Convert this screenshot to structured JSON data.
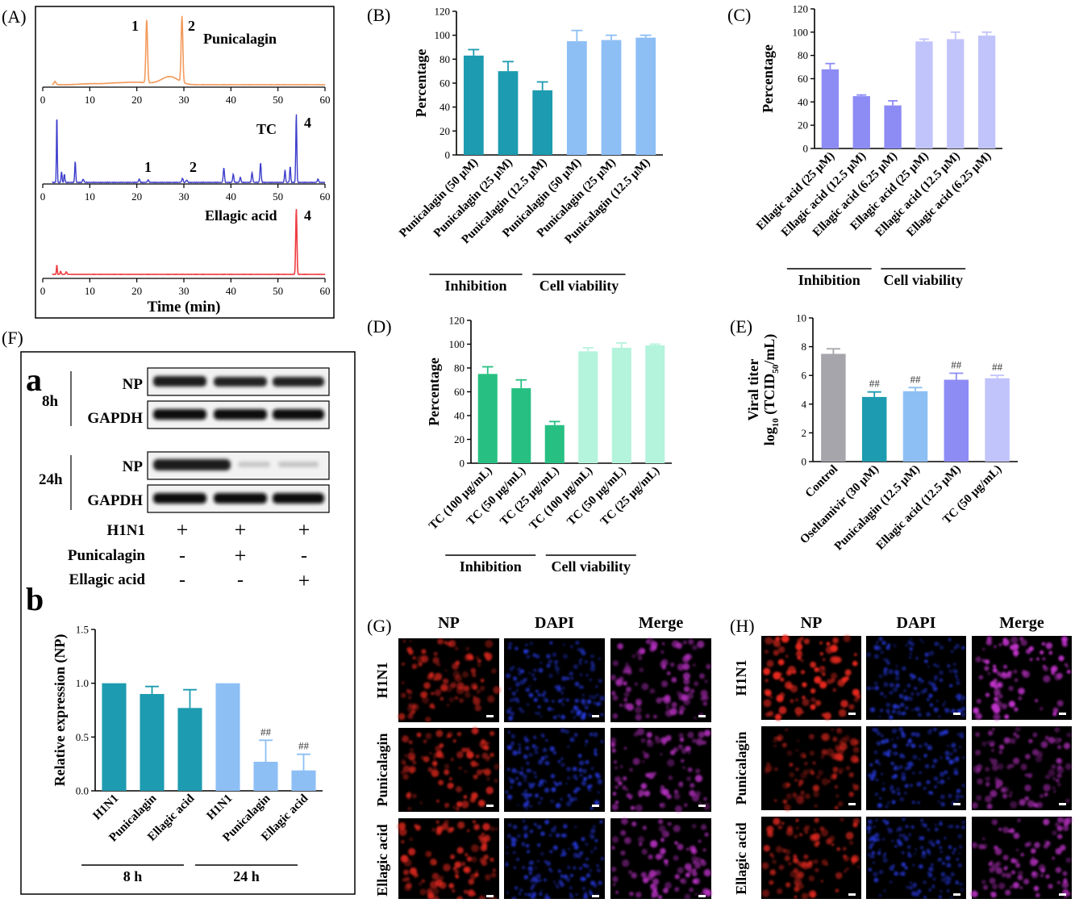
{
  "panels": {
    "A": {
      "letter": "(A)",
      "xlabel": "Time (min)",
      "ticks": [
        "0",
        "10",
        "20",
        "30",
        "40",
        "50",
        "60"
      ],
      "labels": {
        "pun_title": "Punicalagin",
        "tc_title": "TC",
        "ea_title": "Ellagic acid",
        "p1": "1",
        "p2": "2",
        "p4": "4"
      }
    },
    "B": {
      "letter": "(B)"
    },
    "C": {
      "letter": "(C)"
    },
    "D": {
      "letter": "(D)"
    },
    "E": {
      "letter": "(E)"
    },
    "F": {
      "letter": "(F)",
      "sub_a": "a",
      "sub_b": "b",
      "row_8h": "8h",
      "row_24h": "24h",
      "np": "NP",
      "gapdh": "GAPDH",
      "t_h1n1": "H1N1",
      "t_pun": "Punicalagin",
      "t_ea": "Ellagic acid",
      "signs": {
        "h1n1": [
          "+",
          "+",
          "+"
        ],
        "pun": [
          "-",
          "+",
          "-"
        ],
        "ea": [
          "-",
          "-",
          "+"
        ]
      }
    },
    "G": {
      "letter": "(G)",
      "cols": [
        "NP",
        "DAPI",
        "Merge"
      ],
      "rows": [
        "H1N1",
        "Punicalagin",
        "Ellagic acid"
      ]
    },
    "H": {
      "letter": "(H)",
      "cols": [
        "NP",
        "DAPI",
        "Merge"
      ],
      "rows": [
        "H1N1",
        "Punicalagin",
        "Ellagic acid"
      ]
    }
  },
  "colors": {
    "teal": "#1d9bb0",
    "lightblue": "#8dbff5",
    "purple": "#8d8cf5",
    "lavender": "#c1c3fb",
    "green": "#27c082",
    "mint": "#b4f3dc",
    "gray": "#a5a5ab",
    "orange": "#f39a5c",
    "blue": "#3c3ccc",
    "red": "#ee3b40"
  },
  "chart_data": [
    {
      "id": "B",
      "type": "bar",
      "ylabel": "Percentage",
      "ylim": [
        0,
        120
      ],
      "yticks": [
        0,
        20,
        40,
        60,
        80,
        100,
        120
      ],
      "categories": [
        "Punicalagin (50 μM)",
        "Punicalagin (25 μM)",
        "Punicalagin (12.5 μM)",
        "Punicalagin (50 μM)",
        "Punicalagin (25 μM)",
        "Punicalagin (12.5 μM)"
      ],
      "values": [
        83,
        70,
        54,
        95,
        96,
        98
      ],
      "errors": [
        5,
        8,
        7,
        9,
        4,
        2
      ],
      "colors": [
        "#1d9bb0",
        "#1d9bb0",
        "#1d9bb0",
        "#8dbff5",
        "#8dbff5",
        "#8dbff5"
      ],
      "groups": [
        {
          "label": "Inhibition",
          "from": 0,
          "to": 2
        },
        {
          "label": "Cell viability",
          "from": 3,
          "to": 5
        }
      ]
    },
    {
      "id": "C",
      "type": "bar",
      "ylabel": "Percentage",
      "ylim": [
        0,
        120
      ],
      "yticks": [
        0,
        20,
        40,
        60,
        80,
        100,
        120
      ],
      "categories": [
        "Ellagic acid (25 μM)",
        "Ellagic acid (12.5 μM)",
        "Ellagic acid (6.25 μM)",
        "Ellagic acid (25 μM)",
        "Ellagic acid (12.5 μM)",
        "Ellagic acid (6.25 μM)"
      ],
      "values": [
        68,
        45,
        37,
        92,
        94,
        97
      ],
      "errors": [
        5,
        1,
        4,
        2,
        6,
        3
      ],
      "colors": [
        "#8d8cf5",
        "#8d8cf5",
        "#8d8cf5",
        "#c1c3fb",
        "#c1c3fb",
        "#c1c3fb"
      ],
      "groups": [
        {
          "label": "Inhibition",
          "from": 0,
          "to": 2
        },
        {
          "label": "Cell viability",
          "from": 3,
          "to": 5
        }
      ]
    },
    {
      "id": "D",
      "type": "bar",
      "ylabel": "Percentage",
      "ylim": [
        0,
        120
      ],
      "yticks": [
        0,
        20,
        40,
        60,
        80,
        100,
        120
      ],
      "categories": [
        "TC (100 μg/mL)",
        "TC (50 μg/mL)",
        "TC (25 μg/mL)",
        "TC (100 μg/mL)",
        "TC (50 μg/mL)",
        "TC (25 μg/mL)"
      ],
      "values": [
        75,
        63,
        32,
        94,
        97,
        99
      ],
      "errors": [
        6,
        7,
        3,
        3,
        4,
        1
      ],
      "colors": [
        "#27c082",
        "#27c082",
        "#27c082",
        "#b4f3dc",
        "#b4f3dc",
        "#b4f3dc"
      ],
      "groups": [
        {
          "label": "Inhibition",
          "from": 0,
          "to": 2
        },
        {
          "label": "Cell viability",
          "from": 3,
          "to": 5
        }
      ]
    },
    {
      "id": "E",
      "type": "bar",
      "ylabel": "Viral titer",
      "ylabel2": "log10 (TCID50/mL)",
      "ylim": [
        0,
        10
      ],
      "yticks": [
        0,
        2,
        4,
        6,
        8,
        10
      ],
      "categories": [
        "Control",
        "Oseltamivir (30 μM)",
        "Punicalagin (12.5 μM)",
        "Ellagic acid (12.5 μM)",
        "TC (50 μg/mL)"
      ],
      "values": [
        7.5,
        4.5,
        4.9,
        5.7,
        5.8
      ],
      "errors": [
        0.35,
        0.35,
        0.25,
        0.45,
        0.2
      ],
      "colors": [
        "#a5a5ab",
        "#1d9bb0",
        "#8dbff5",
        "#8d8cf5",
        "#c1c3fb"
      ],
      "annotations": [
        "",
        "##",
        "##",
        "##",
        "##"
      ]
    },
    {
      "id": "Fb",
      "type": "bar",
      "ylabel": "Relative expression (NP)",
      "ylim": [
        0,
        1.5
      ],
      "yticks": [
        0,
        0.5,
        1.0,
        1.5
      ],
      "ytick_labels": [
        "0.0",
        "0.5",
        "1.0",
        "1.5"
      ],
      "categories": [
        "H1N1",
        "Punicalagin",
        "Ellagic acid",
        "H1N1",
        "Punicalagin",
        "Ellagic acid"
      ],
      "values": [
        1.0,
        0.9,
        0.77,
        1.0,
        0.27,
        0.19
      ],
      "errors": [
        0,
        0.07,
        0.17,
        0,
        0.2,
        0.15
      ],
      "colors": [
        "#1d9bb0",
        "#1d9bb0",
        "#1d9bb0",
        "#8dbff5",
        "#8dbff5",
        "#8dbff5"
      ],
      "annotations": [
        "",
        "",
        "",
        "",
        "##",
        "##"
      ],
      "groups": [
        {
          "label": "8 h",
          "from": 0,
          "to": 2
        },
        {
          "label": "24 h",
          "from": 3,
          "to": 5
        }
      ]
    }
  ]
}
